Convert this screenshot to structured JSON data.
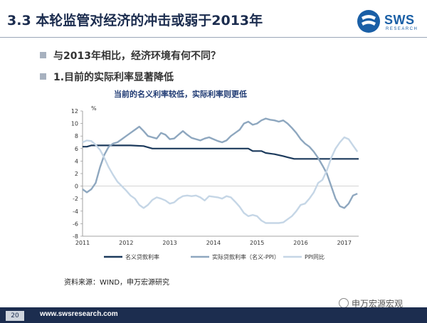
{
  "header": {
    "title": "3.3 本轮监管对经济的冲击或弱于2013年",
    "logo_text": "SWS",
    "logo_sub": "RESEARCH"
  },
  "bullets": [
    "与2013年相比，经济环境有何不同？",
    "1.目前的实际利率显著降低"
  ],
  "chart_data": {
    "type": "line",
    "title": "当前的名义利率较低，实际利率则更低",
    "ylabel": "%",
    "xlabel": "",
    "ylim": [
      -8,
      12
    ],
    "yticks": [
      12,
      10,
      8,
      6,
      4,
      2,
      0,
      -2,
      -4,
      -6,
      -8
    ],
    "xticks": [
      "2011",
      "2012",
      "2013",
      "2014",
      "2015",
      "2016",
      "2017"
    ],
    "xlim": [
      2011.0,
      2017.33
    ],
    "grid": false,
    "legend_position": "bottom",
    "series": [
      {
        "name": "名义贷款利率",
        "color": "#1c3a5c",
        "points": [
          [
            2011.0,
            6.3
          ],
          [
            2011.1,
            6.3
          ],
          [
            2011.2,
            6.5
          ],
          [
            2011.4,
            6.5
          ],
          [
            2011.6,
            6.5
          ],
          [
            2011.9,
            6.5
          ],
          [
            2012.1,
            6.5
          ],
          [
            2012.4,
            6.4
          ],
          [
            2012.6,
            6.0
          ],
          [
            2012.9,
            6.0
          ],
          [
            2013.5,
            6.0
          ],
          [
            2014.0,
            6.0
          ],
          [
            2014.5,
            6.0
          ],
          [
            2014.8,
            6.0
          ],
          [
            2014.9,
            5.6
          ],
          [
            2015.1,
            5.6
          ],
          [
            2015.2,
            5.3
          ],
          [
            2015.4,
            5.1
          ],
          [
            2015.6,
            4.8
          ],
          [
            2015.7,
            4.6
          ],
          [
            2015.85,
            4.35
          ],
          [
            2016.0,
            4.35
          ],
          [
            2016.5,
            4.35
          ],
          [
            2017.0,
            4.35
          ],
          [
            2017.33,
            4.35
          ]
        ]
      },
      {
        "name": "实际贷款利率（名义-PPI）",
        "color": "#8ea7bf",
        "points": [
          [
            2011.0,
            -0.5
          ],
          [
            2011.1,
            -1.0
          ],
          [
            2011.2,
            -0.5
          ],
          [
            2011.3,
            0.5
          ],
          [
            2011.4,
            3.0
          ],
          [
            2011.5,
            5.0
          ],
          [
            2011.6,
            6.3
          ],
          [
            2011.7,
            6.8
          ],
          [
            2011.8,
            7.0
          ],
          [
            2011.9,
            7.5
          ],
          [
            2012.0,
            8.0
          ],
          [
            2012.1,
            8.5
          ],
          [
            2012.2,
            9.0
          ],
          [
            2012.3,
            9.5
          ],
          [
            2012.4,
            8.8
          ],
          [
            2012.5,
            8.0
          ],
          [
            2012.6,
            7.8
          ],
          [
            2012.7,
            7.6
          ],
          [
            2012.8,
            8.5
          ],
          [
            2012.9,
            8.2
          ],
          [
            2013.0,
            7.5
          ],
          [
            2013.1,
            7.6
          ],
          [
            2013.2,
            8.2
          ],
          [
            2013.3,
            8.8
          ],
          [
            2013.4,
            8.2
          ],
          [
            2013.5,
            7.7
          ],
          [
            2013.6,
            7.5
          ],
          [
            2013.7,
            7.3
          ],
          [
            2013.8,
            7.6
          ],
          [
            2013.9,
            7.8
          ],
          [
            2014.0,
            7.5
          ],
          [
            2014.1,
            7.2
          ],
          [
            2014.2,
            7.0
          ],
          [
            2014.3,
            7.3
          ],
          [
            2014.4,
            8.0
          ],
          [
            2014.5,
            8.5
          ],
          [
            2014.6,
            9.0
          ],
          [
            2014.7,
            10.0
          ],
          [
            2014.8,
            10.3
          ],
          [
            2014.9,
            9.8
          ],
          [
            2015.0,
            10.0
          ],
          [
            2015.1,
            10.5
          ],
          [
            2015.2,
            10.8
          ],
          [
            2015.3,
            10.6
          ],
          [
            2015.4,
            10.5
          ],
          [
            2015.5,
            10.3
          ],
          [
            2015.6,
            10.5
          ],
          [
            2015.7,
            10.0
          ],
          [
            2015.8,
            9.3
          ],
          [
            2015.9,
            8.5
          ],
          [
            2016.0,
            7.5
          ],
          [
            2016.1,
            6.8
          ],
          [
            2016.2,
            6.3
          ],
          [
            2016.3,
            5.5
          ],
          [
            2016.4,
            4.5
          ],
          [
            2016.5,
            3.3
          ],
          [
            2016.6,
            2.0
          ],
          [
            2016.7,
            0.0
          ],
          [
            2016.8,
            -2.0
          ],
          [
            2016.9,
            -3.2
          ],
          [
            2017.0,
            -3.5
          ],
          [
            2017.1,
            -2.8
          ],
          [
            2017.2,
            -1.5
          ],
          [
            2017.3,
            -1.2
          ]
        ]
      },
      {
        "name": "PPI同比",
        "color": "#c5d6e6",
        "points": [
          [
            2011.0,
            7.0
          ],
          [
            2011.1,
            7.3
          ],
          [
            2011.2,
            7.2
          ],
          [
            2011.3,
            6.6
          ],
          [
            2011.4,
            5.8
          ],
          [
            2011.5,
            4.5
          ],
          [
            2011.6,
            3.0
          ],
          [
            2011.7,
            1.8
          ],
          [
            2011.8,
            0.7
          ],
          [
            2011.9,
            0.0
          ],
          [
            2012.0,
            -0.7
          ],
          [
            2012.1,
            -1.5
          ],
          [
            2012.2,
            -2.0
          ],
          [
            2012.3,
            -3.0
          ],
          [
            2012.4,
            -3.5
          ],
          [
            2012.5,
            -3.0
          ],
          [
            2012.6,
            -2.2
          ],
          [
            2012.7,
            -1.8
          ],
          [
            2012.8,
            -2.0
          ],
          [
            2012.9,
            -2.3
          ],
          [
            2013.0,
            -2.8
          ],
          [
            2013.1,
            -2.6
          ],
          [
            2013.2,
            -2.0
          ],
          [
            2013.3,
            -1.6
          ],
          [
            2013.4,
            -1.5
          ],
          [
            2013.5,
            -1.6
          ],
          [
            2013.6,
            -1.5
          ],
          [
            2013.7,
            -1.8
          ],
          [
            2013.8,
            -2.3
          ],
          [
            2013.9,
            -1.6
          ],
          [
            2014.0,
            -1.7
          ],
          [
            2014.1,
            -1.8
          ],
          [
            2014.2,
            -2.0
          ],
          [
            2014.3,
            -1.6
          ],
          [
            2014.4,
            -1.8
          ],
          [
            2014.5,
            -2.5
          ],
          [
            2014.6,
            -3.3
          ],
          [
            2014.7,
            -4.3
          ],
          [
            2014.8,
            -4.8
          ],
          [
            2014.9,
            -4.6
          ],
          [
            2015.0,
            -4.8
          ],
          [
            2015.1,
            -5.5
          ],
          [
            2015.2,
            -5.9
          ],
          [
            2015.3,
            -5.9
          ],
          [
            2015.4,
            -5.9
          ],
          [
            2015.5,
            -5.9
          ],
          [
            2015.6,
            -5.8
          ],
          [
            2015.7,
            -5.3
          ],
          [
            2015.8,
            -4.8
          ],
          [
            2015.9,
            -4.0
          ],
          [
            2016.0,
            -3.0
          ],
          [
            2016.1,
            -2.8
          ],
          [
            2016.2,
            -2.0
          ],
          [
            2016.3,
            -1.0
          ],
          [
            2016.4,
            0.5
          ],
          [
            2016.5,
            1.0
          ],
          [
            2016.6,
            2.5
          ],
          [
            2016.7,
            4.5
          ],
          [
            2016.8,
            6.0
          ],
          [
            2016.9,
            7.0
          ],
          [
            2017.0,
            7.8
          ],
          [
            2017.1,
            7.5
          ],
          [
            2017.2,
            6.5
          ],
          [
            2017.3,
            5.5
          ]
        ]
      }
    ]
  },
  "source": "资料来源：WIND，申万宏源研究",
  "footer": {
    "page": "20",
    "url": "www.swsresearch.com",
    "wechat": "申万宏源宏观"
  },
  "colors": {
    "brand": "#1c2d4f",
    "accent": "#1a5fa6"
  }
}
